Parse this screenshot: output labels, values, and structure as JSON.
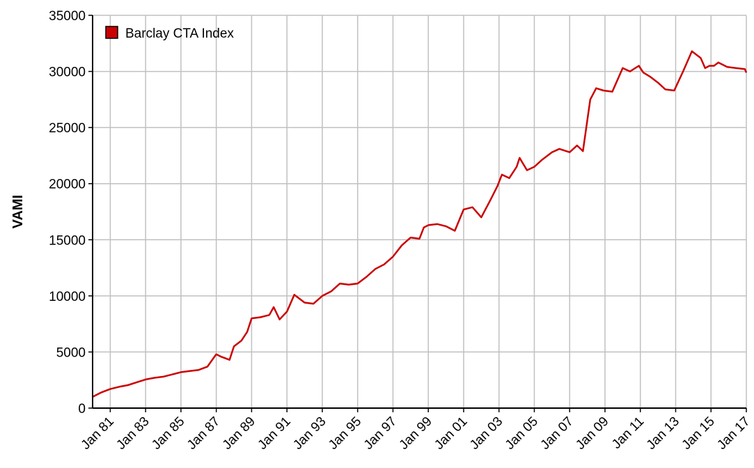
{
  "chart_data": {
    "type": "line",
    "title": "",
    "xlabel": "",
    "ylabel": "VAMI",
    "ylim": [
      0,
      35000
    ],
    "yticks": [
      0,
      5000,
      10000,
      15000,
      20000,
      25000,
      30000,
      35000
    ],
    "xticks": [
      "Jan 81",
      "Jan 83",
      "Jan 85",
      "Jan 87",
      "Jan 89",
      "Jan 91",
      "Jan 93",
      "Jan 95",
      "Jan 97",
      "Jan 99",
      "Jan 01",
      "Jan 03",
      "Jan 05",
      "Jan 07",
      "Jan 09",
      "Jan 11",
      "Jan 13",
      "Jan 15",
      "Jan 17"
    ],
    "xlim": [
      "1980-01",
      "2017-01"
    ],
    "grid": true,
    "legend_position": "top-left",
    "series": [
      {
        "name": "Barclay CTA Index",
        "color": "#cc0000",
        "x": [
          "1980-01",
          "1980-07",
          "1981-01",
          "1981-07",
          "1982-01",
          "1982-07",
          "1983-01",
          "1983-07",
          "1984-01",
          "1984-07",
          "1985-01",
          "1985-07",
          "1986-01",
          "1986-07",
          "1987-01",
          "1987-04",
          "1987-10",
          "1988-01",
          "1988-06",
          "1988-10",
          "1989-01",
          "1989-07",
          "1990-01",
          "1990-04",
          "1990-08",
          "1991-01",
          "1991-06",
          "1992-01",
          "1992-07",
          "1993-01",
          "1993-07",
          "1994-01",
          "1994-07",
          "1995-01",
          "1995-07",
          "1996-01",
          "1996-07",
          "1997-01",
          "1997-07",
          "1998-01",
          "1998-07",
          "1998-10",
          "1999-01",
          "1999-07",
          "2000-01",
          "2000-07",
          "2001-01",
          "2001-07",
          "2002-01",
          "2002-07",
          "2002-12",
          "2003-03",
          "2003-08",
          "2004-01",
          "2004-03",
          "2004-08",
          "2005-01",
          "2005-06",
          "2006-01",
          "2006-06",
          "2007-01",
          "2007-06",
          "2007-10",
          "2008-03",
          "2008-07",
          "2008-12",
          "2009-06",
          "2010-01",
          "2010-06",
          "2010-12",
          "2011-03",
          "2011-08",
          "2012-01",
          "2012-06",
          "2012-12",
          "2013-06",
          "2013-12",
          "2014-06",
          "2014-09",
          "2014-12",
          "2015-03",
          "2015-06",
          "2015-12",
          "2016-06",
          "2016-12",
          "2017-01"
        ],
        "values": [
          1000,
          1400,
          1700,
          1900,
          2050,
          2300,
          2550,
          2700,
          2800,
          3000,
          3200,
          3300,
          3400,
          3700,
          4800,
          4600,
          4300,
          5500,
          6000,
          6800,
          8000,
          8100,
          8300,
          9000,
          7900,
          8600,
          10100,
          9400,
          9300,
          10000,
          10400,
          11100,
          11000,
          11100,
          11700,
          12400,
          12800,
          13500,
          14500,
          15200,
          15100,
          16100,
          16300,
          16400,
          16200,
          15800,
          17700,
          17900,
          17000,
          18500,
          19800,
          20800,
          20500,
          21500,
          22300,
          21200,
          21500,
          22100,
          22800,
          23100,
          22800,
          23400,
          22900,
          27500,
          28500,
          28300,
          28200,
          30300,
          30000,
          30500,
          29900,
          29500,
          29000,
          28400,
          28300,
          30000,
          31800,
          31200,
          30300,
          30500,
          30500,
          30800,
          30400,
          30300,
          30200,
          29900
        ]
      }
    ]
  }
}
